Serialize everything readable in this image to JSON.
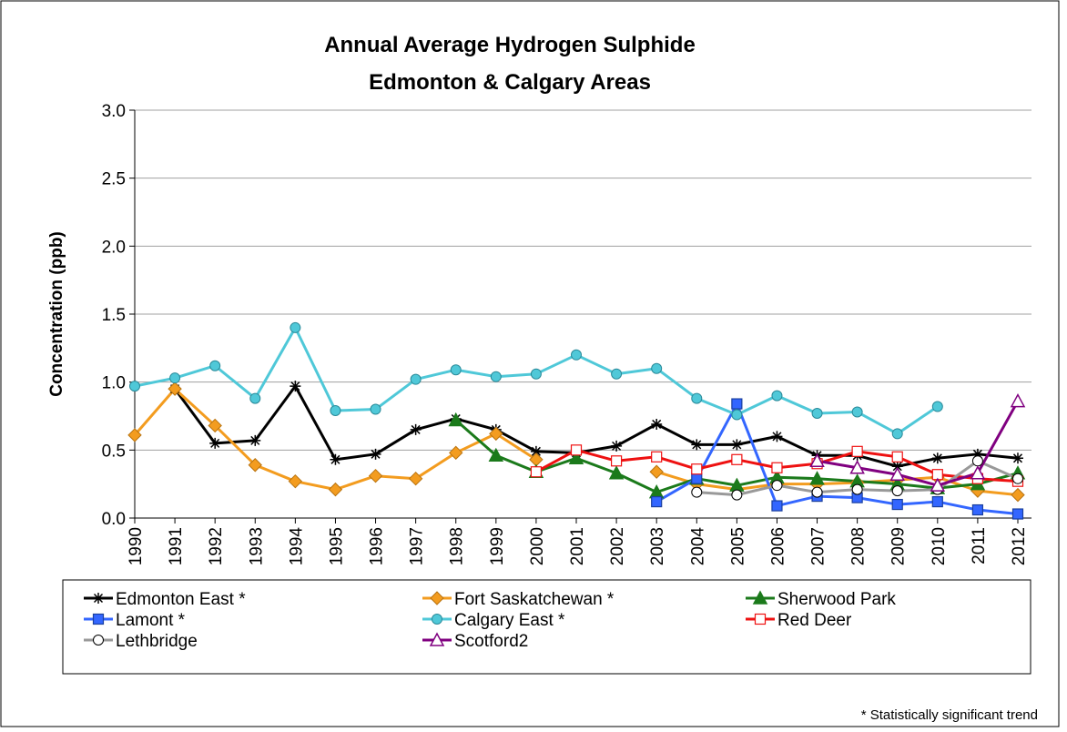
{
  "chart_data": {
    "type": "line",
    "title": [
      "Annual Average Hydrogen Sulphide",
      "Edmonton & Calgary Areas"
    ],
    "y_label": "Concentration (ppb)",
    "footnote": "* Statistically significant trend",
    "categories": [
      "1990",
      "1991",
      "1992",
      "1993",
      "1994",
      "1995",
      "1996",
      "1997",
      "1998",
      "1999",
      "2000",
      "2001",
      "2002",
      "2003",
      "2004",
      "2005",
      "2006",
      "2007",
      "2008",
      "2009",
      "2010",
      "2011",
      "2012"
    ],
    "ylim": [
      0,
      3
    ],
    "yticks": [
      {
        "value": 0,
        "label": "0.0"
      },
      {
        "value": 0.5,
        "label": "0.5"
      },
      {
        "value": 1,
        "label": "1.0"
      },
      {
        "value": 1.5,
        "label": "1.5"
      },
      {
        "value": 2,
        "label": "2.0"
      },
      {
        "value": 2.5,
        "label": "2.5"
      },
      {
        "value": 3,
        "label": "3.0"
      }
    ],
    "grid": true,
    "legend": "bottom",
    "series": [
      {
        "name": "Edmonton East *",
        "color": "#000000",
        "marker": "star",
        "marker_fill": "#000000",
        "values": [
          null,
          0.95,
          0.55,
          0.57,
          0.97,
          0.43,
          0.47,
          0.65,
          0.73,
          0.65,
          0.49,
          0.48,
          0.53,
          0.69,
          0.54,
          0.54,
          0.6,
          0.46,
          0.46,
          0.38,
          0.44,
          0.47,
          0.44
        ]
      },
      {
        "name": "Fort Saskatchewan *",
        "color": "#f39c1f",
        "marker": "diamond",
        "marker_fill": "#f39c1f",
        "values": [
          0.61,
          0.95,
          0.68,
          0.39,
          0.27,
          0.21,
          0.31,
          0.29,
          0.48,
          0.62,
          0.43,
          null,
          null,
          0.34,
          0.25,
          0.21,
          0.25,
          0.25,
          0.26,
          0.28,
          0.3,
          0.2,
          0.17
        ]
      },
      {
        "name": "Sherwood Park",
        "color": "#1b7a1b",
        "marker": "triangle",
        "marker_fill": "#1b7a1b",
        "values": [
          null,
          null,
          null,
          null,
          null,
          null,
          null,
          null,
          0.72,
          0.46,
          0.34,
          0.44,
          0.33,
          0.19,
          0.29,
          0.24,
          0.3,
          0.29,
          0.27,
          0.25,
          0.22,
          0.25,
          0.33
        ]
      },
      {
        "name": "Lamont *",
        "color": "#3366ff",
        "marker": "square",
        "marker_fill": "#3366ff",
        "values": [
          null,
          null,
          null,
          null,
          null,
          null,
          null,
          null,
          null,
          null,
          null,
          null,
          null,
          0.12,
          0.29,
          0.84,
          0.09,
          0.16,
          0.15,
          0.1,
          0.12,
          0.06,
          0.03
        ]
      },
      {
        "name": "Calgary East *",
        "color": "#4fc8d8",
        "marker": "circle",
        "marker_fill": "#4fc8d8",
        "values": [
          0.97,
          1.03,
          1.12,
          0.88,
          1.4,
          0.79,
          0.8,
          1.02,
          1.09,
          1.04,
          1.06,
          1.2,
          1.06,
          1.1,
          0.88,
          0.76,
          0.9,
          0.77,
          0.78,
          0.62,
          0.82,
          null,
          null
        ]
      },
      {
        "name": "Red Deer",
        "color": "#ee1111",
        "marker": "square",
        "marker_fill": "#ffffff",
        "values": [
          null,
          null,
          null,
          null,
          null,
          null,
          null,
          null,
          null,
          null,
          0.34,
          0.5,
          0.42,
          0.45,
          0.36,
          0.43,
          0.37,
          0.4,
          0.49,
          0.45,
          0.32,
          0.29,
          0.27
        ]
      },
      {
        "name": "Lethbridge",
        "color": "#999999",
        "marker": "circle",
        "marker_fill": "#ffffff",
        "values": [
          null,
          null,
          null,
          null,
          null,
          null,
          null,
          null,
          null,
          null,
          null,
          null,
          null,
          null,
          0.19,
          0.17,
          0.24,
          0.19,
          0.21,
          0.2,
          0.21,
          0.42,
          0.29
        ]
      },
      {
        "name": "Scotford2",
        "color": "#800080",
        "marker": "triangle",
        "marker_fill": "#ffffff",
        "values": [
          null,
          null,
          null,
          null,
          null,
          null,
          null,
          null,
          null,
          null,
          null,
          null,
          null,
          null,
          null,
          null,
          null,
          0.42,
          0.37,
          0.32,
          0.24,
          0.33,
          0.86
        ]
      }
    ]
  }
}
